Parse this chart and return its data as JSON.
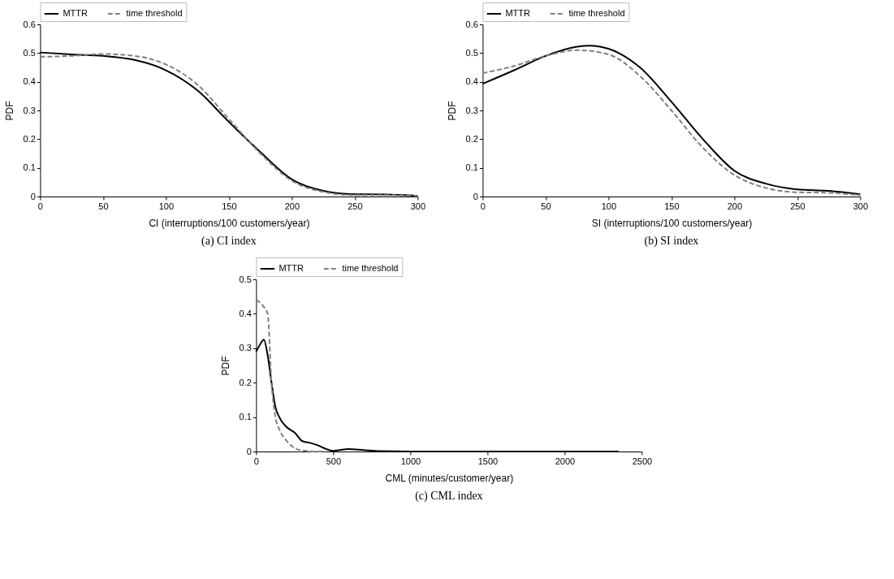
{
  "chart_data": [
    {
      "type": "line",
      "title": "(a)   CI index",
      "xlabel": "CI (interruptions/100 customers/year)",
      "ylabel": "PDF",
      "xlim": [
        0,
        300
      ],
      "xticks": [
        0,
        50,
        100,
        150,
        200,
        250,
        300
      ],
      "ylim": [
        0,
        0.6
      ],
      "yticks": [
        0,
        0.1,
        0.2,
        0.3,
        0.4,
        0.5,
        0.6
      ],
      "grid": false,
      "legend": "top",
      "marker": "none",
      "series": [
        {
          "name": "MTTR",
          "color": "#000000",
          "line_style": "solid",
          "x": [
            0,
            25,
            50,
            75,
            100,
            125,
            150,
            175,
            200,
            225,
            250,
            275,
            300
          ],
          "values": [
            0.502,
            0.495,
            0.49,
            0.476,
            0.44,
            0.37,
            0.26,
            0.155,
            0.06,
            0.02,
            0.008,
            0.007,
            0.003
          ]
        },
        {
          "name": "time threshold",
          "color": "#808080",
          "line_style": "dashed",
          "x": [
            0,
            25,
            50,
            75,
            100,
            125,
            150,
            175,
            200,
            225,
            250,
            275,
            300
          ],
          "values": [
            0.487,
            0.49,
            0.497,
            0.49,
            0.46,
            0.39,
            0.27,
            0.15,
            0.055,
            0.016,
            0.005,
            0.005,
            0.002
          ]
        }
      ]
    },
    {
      "type": "line",
      "title": "(b)   SI index",
      "xlabel": "SI (interruptions/100 customers/year)",
      "ylabel": "PDF",
      "xlim": [
        0,
        300
      ],
      "xticks": [
        0,
        50,
        100,
        150,
        200,
        250,
        300
      ],
      "ylim": [
        0,
        0.6
      ],
      "yticks": [
        0,
        0.1,
        0.2,
        0.3,
        0.4,
        0.5,
        0.6
      ],
      "grid": false,
      "legend": "top",
      "marker": "none",
      "series": [
        {
          "name": "MTTR",
          "color": "#000000",
          "line_style": "solid",
          "x": [
            0,
            25,
            50,
            75,
            85,
            100,
            125,
            150,
            175,
            200,
            225,
            250,
            275,
            300
          ],
          "values": [
            0.393,
            0.44,
            0.49,
            0.522,
            0.526,
            0.515,
            0.45,
            0.33,
            0.2,
            0.09,
            0.045,
            0.025,
            0.02,
            0.008
          ]
        },
        {
          "name": "time threshold",
          "color": "#808080",
          "line_style": "dashed",
          "x": [
            0,
            25,
            50,
            75,
            100,
            125,
            150,
            175,
            200,
            225,
            250,
            275,
            300
          ],
          "values": [
            0.43,
            0.455,
            0.49,
            0.51,
            0.495,
            0.42,
            0.3,
            0.17,
            0.075,
            0.03,
            0.015,
            0.013,
            0.005
          ]
        }
      ]
    },
    {
      "type": "line",
      "title": "(c)   CML index",
      "xlabel": "CML (minutes/customer/year)",
      "ylabel": "PDF",
      "xlim": [
        0,
        2500
      ],
      "xticks": [
        0,
        500,
        1000,
        1500,
        2000,
        2500
      ],
      "ylim": [
        0,
        0.5
      ],
      "yticks": [
        0,
        0.1,
        0.2,
        0.3,
        0.4,
        0.5
      ],
      "grid": false,
      "legend": "top",
      "marker": "none",
      "series": [
        {
          "name": "MTTR",
          "color": "#000000",
          "line_style": "solid",
          "x": [
            0,
            25,
            50,
            75,
            100,
            125,
            150,
            200,
            250,
            300,
            350,
            400,
            450,
            500,
            600,
            700,
            800,
            1000,
            1500,
            2000,
            2350
          ],
          "values": [
            0.29,
            0.31,
            0.325,
            0.28,
            0.2,
            0.13,
            0.1,
            0.07,
            0.055,
            0.03,
            0.025,
            0.018,
            0.008,
            0.002,
            0.007,
            0.004,
            0.001,
            0,
            0,
            0,
            0
          ]
        },
        {
          "name": "time threshold",
          "color": "#808080",
          "line_style": "dashed",
          "x": [
            0,
            50,
            75,
            100,
            125,
            150,
            200,
            250,
            300,
            400,
            450
          ],
          "values": [
            0.44,
            0.42,
            0.4,
            0.2,
            0.1,
            0.065,
            0.03,
            0.01,
            0.003,
            0,
            0
          ]
        }
      ]
    }
  ]
}
